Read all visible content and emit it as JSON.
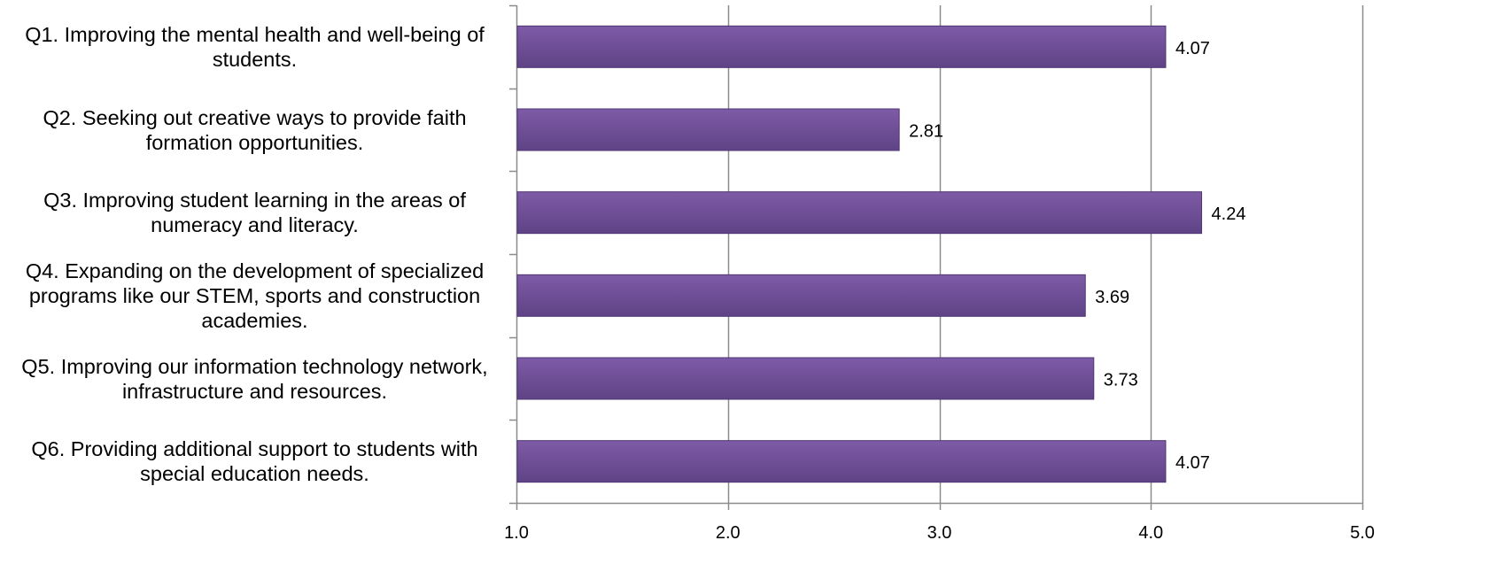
{
  "chart_data": {
    "type": "bar",
    "orientation": "horizontal",
    "categories": [
      "Q1. Improving the mental health and well-being of students.",
      "Q2. Seeking out creative ways to provide faith formation opportunities.",
      "Q3. Improving student learning in the areas of numeracy and literacy.",
      "Q4. Expanding on the development of specialized programs like our STEM, sports and construction academies.",
      "Q5. Improving our information technology network, infrastructure and resources.",
      "Q6. Providing additional support to students with special education needs."
    ],
    "category_lines": [
      [
        "Q1. Improving the mental health and well-being of",
        "students."
      ],
      [
        "Q2. Seeking out creative ways to provide faith",
        "formation opportunities."
      ],
      [
        "Q3. Improving student learning in the areas of",
        "numeracy and literacy."
      ],
      [
        "Q4. Expanding on the development of specialized",
        "programs like our STEM, sports and construction",
        "academies."
      ],
      [
        "Q5. Improving our information technology network,",
        "infrastructure and resources."
      ],
      [
        "Q6. Providing additional support to students with",
        "special education needs."
      ]
    ],
    "values": [
      4.07,
      2.81,
      4.24,
      3.69,
      3.73,
      4.07
    ],
    "data_labels": [
      "4.07",
      "2.81",
      "4.24",
      "3.69",
      "3.73",
      "4.07"
    ],
    "xlim": [
      1.0,
      5.0
    ],
    "xticks": [
      1.0,
      2.0,
      3.0,
      4.0,
      5.0
    ],
    "xtick_labels": [
      "1.0",
      "2.0",
      "3.0",
      "4.0",
      "5.0"
    ],
    "grid": "vertical",
    "title": "",
    "xlabel": "",
    "ylabel": "",
    "colors": {
      "bar_top": "#7e5ba6",
      "bar_bottom": "#5f4386",
      "bar_edge": "#4f3672",
      "grid": "#8c8c8c",
      "axis": "#8c8c8c"
    }
  }
}
